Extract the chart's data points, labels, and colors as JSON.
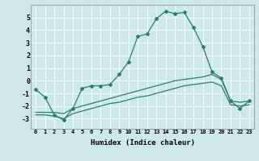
{
  "xlabel": "Humidex (Indice chaleur)",
  "x": [
    0,
    1,
    2,
    3,
    4,
    5,
    6,
    7,
    8,
    9,
    10,
    11,
    12,
    13,
    14,
    15,
    16,
    17,
    18,
    19,
    20,
    21,
    22,
    23
  ],
  "line1": [
    -0.7,
    -1.3,
    -2.7,
    -3.1,
    -2.2,
    -0.6,
    -0.4,
    -0.4,
    -0.3,
    0.5,
    1.5,
    3.5,
    3.7,
    4.9,
    5.5,
    5.3,
    5.4,
    4.2,
    2.7,
    0.7,
    0.2,
    -1.6,
    -2.2,
    -1.6
  ],
  "line2": [
    -2.5,
    -2.5,
    -2.5,
    -2.6,
    -2.2,
    -2.0,
    -1.8,
    -1.6,
    -1.4,
    -1.2,
    -1.0,
    -0.8,
    -0.6,
    -0.4,
    -0.2,
    0.0,
    0.1,
    0.2,
    0.3,
    0.5,
    0.1,
    -1.6,
    -1.7,
    -1.6
  ],
  "line3": [
    -2.7,
    -2.7,
    -2.8,
    -3.0,
    -2.6,
    -2.4,
    -2.2,
    -2.0,
    -1.8,
    -1.7,
    -1.5,
    -1.3,
    -1.2,
    -1.0,
    -0.8,
    -0.6,
    -0.4,
    -0.3,
    -0.2,
    -0.1,
    -0.4,
    -1.9,
    -2.0,
    -1.9
  ],
  "line_color": "#2a7d6e",
  "bg_color": "#cce8e8",
  "grid_color": "#b0d4d4",
  "ylim": [
    -3.8,
    6.0
  ],
  "yticks": [
    -3,
    -2,
    -1,
    0,
    1,
    2,
    3,
    4,
    5
  ],
  "xticks": [
    0,
    1,
    2,
    3,
    4,
    5,
    6,
    7,
    8,
    9,
    10,
    11,
    12,
    13,
    14,
    15,
    16,
    17,
    18,
    19,
    20,
    21,
    22,
    23
  ]
}
